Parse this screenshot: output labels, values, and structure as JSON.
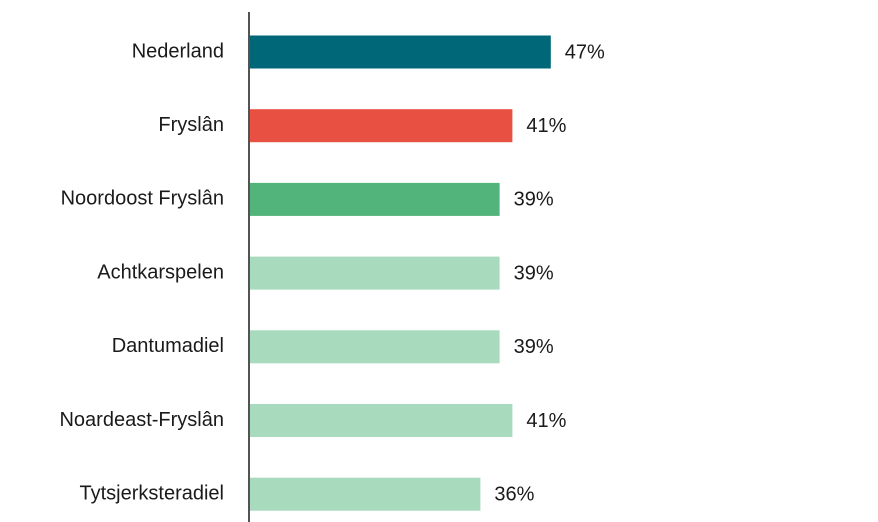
{
  "chart_data": {
    "type": "bar",
    "orientation": "horizontal",
    "categories": [
      "Nederland",
      "Fryslân",
      "Noordoost Fryslân",
      "Achtkarspelen",
      "Dantumadiel",
      "Noardeast-Fryslân",
      "Tytsjerksteradiel"
    ],
    "values": [
      47,
      41,
      39,
      39,
      39,
      41,
      36
    ],
    "value_labels": [
      "47%",
      "41%",
      "39%",
      "39%",
      "39%",
      "41%",
      "36%"
    ],
    "colors": [
      "#006778",
      "#e85142",
      "#52b47a",
      "#a8dabd",
      "#a8dabd",
      "#a8dabd",
      "#a8dabd"
    ]
  }
}
